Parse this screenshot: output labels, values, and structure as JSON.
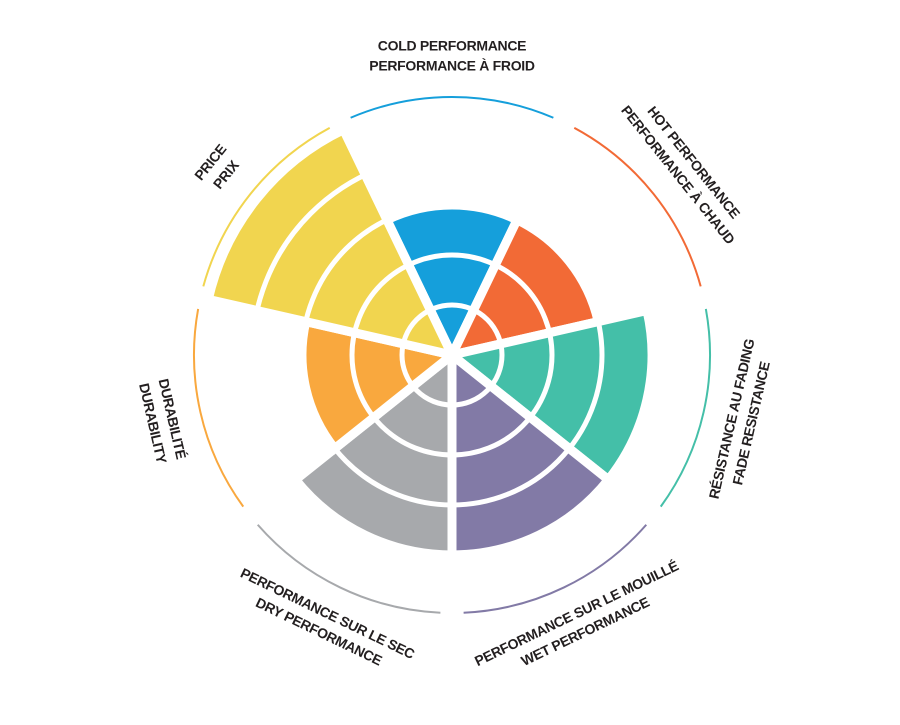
{
  "chart_data": {
    "type": "polar-area",
    "categories": [
      [
        "COLD PERFORMANCE",
        "PERFORMANCE À FROID"
      ],
      [
        "HOT PERFORMANCE",
        "PERFORMANCE À CHAUD"
      ],
      [
        "RÉSISTANCE AU FADING",
        "FADE RESISTANCE"
      ],
      [
        "PERFORMANCE SUR LE MOUILLÉ",
        "WET PERFORMANCE"
      ],
      [
        "PERFORMANCE SUR LE SEC",
        "DRY PERFORMANCE"
      ],
      [
        "DURABILITÉ",
        "DURABILITY"
      ],
      [
        "PRICE",
        "PRIX"
      ]
    ],
    "values": [
      3,
      3,
      4,
      4,
      4,
      3,
      5
    ],
    "colors": [
      "#159fdb",
      "#f26a36",
      "#44bfa8",
      "#827aa6",
      "#a7a9ac",
      "#f9a83e",
      "#f1d54f"
    ],
    "rlim": [
      0,
      5
    ],
    "rticks": [
      1,
      2,
      3,
      4,
      5
    ]
  }
}
